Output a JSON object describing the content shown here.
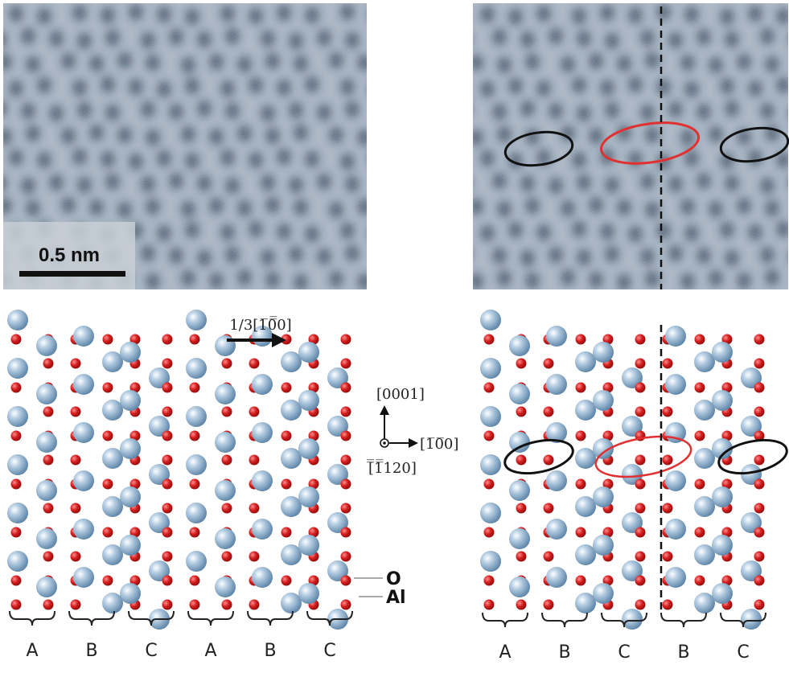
{
  "left_panel": {
    "scale_bar_label": "0.5 nm",
    "shift_vector_label": "1/3[1̅0̅̅0]",
    "stacking": [
      "A",
      "B",
      "C",
      "A",
      "B",
      "C"
    ],
    "legend": {
      "oxygen": "O",
      "aluminum": "Al"
    }
  },
  "right_panel": {
    "stacking": [
      "A",
      "B",
      "C",
      "B",
      "C"
    ]
  },
  "axes": {
    "up": "[0001]",
    "right": "[1̅0̅0]",
    "out": "[̅̅1̅̅120]"
  },
  "colors": {
    "oxygen": "#d41d1d",
    "aluminum": "#7fa4c2",
    "highlight_red": "#e03030",
    "highlight_black": "#111111",
    "boundary": "#111111"
  }
}
